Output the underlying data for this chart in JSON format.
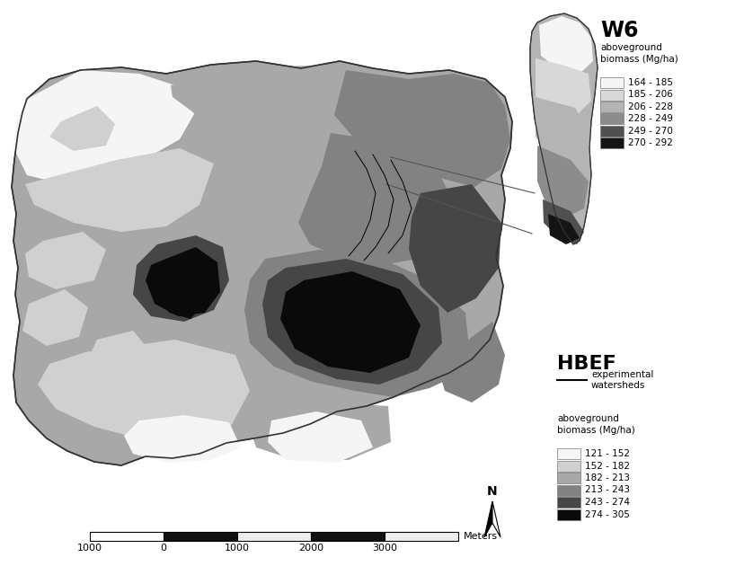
{
  "figure_bg": "#ffffff",
  "w6_title": "W6",
  "hbef_title": "HBEF",
  "w6_classes": [
    "164 - 185",
    "185 - 206",
    "206 - 228",
    "228 - 249",
    "249 - 270",
    "270 - 292"
  ],
  "w6_colors": [
    "#f5f5f5",
    "#d8d8d8",
    "#b4b4b4",
    "#8c8c8c",
    "#505050",
    "#141414"
  ],
  "hbef_classes": [
    "121 - 152",
    "152 - 182",
    "182 - 213",
    "213 - 243",
    "243 - 274",
    "274 - 305"
  ],
  "hbef_colors": [
    "#f5f5f5",
    "#d0d0d0",
    "#a8a8a8",
    "#828282",
    "#464646",
    "#0a0a0a"
  ],
  "scale_labels": [
    "1000",
    "0",
    "1000",
    "2000",
    "3000"
  ],
  "scale_unit": "Meters"
}
